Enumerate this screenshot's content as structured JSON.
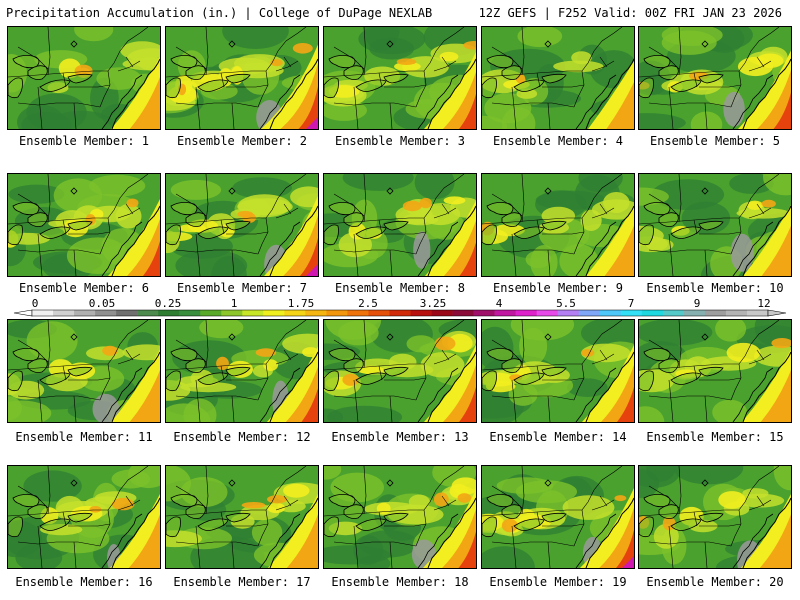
{
  "header": {
    "left": "Precipitation Accumulation (in.) | College of DuPage NEXLAB",
    "right": "12Z GEFS | F252 Valid: 00Z FRI JAN 23 2026"
  },
  "members": [
    {
      "label": "Ensemble Member: 1",
      "intensity": 0.35
    },
    {
      "label": "Ensemble Member: 2",
      "intensity": 0.75
    },
    {
      "label": "Ensemble Member: 3",
      "intensity": 0.5
    },
    {
      "label": "Ensemble Member: 4",
      "intensity": 0.2
    },
    {
      "label": "Ensemble Member: 5",
      "intensity": 0.55
    },
    {
      "label": "Ensemble Member: 6",
      "intensity": 0.5
    },
    {
      "label": "Ensemble Member: 7",
      "intensity": 0.6
    },
    {
      "label": "Ensemble Member: 8",
      "intensity": 0.45
    },
    {
      "label": "Ensemble Member: 9",
      "intensity": 0.3
    },
    {
      "label": "Ensemble Member: 10",
      "intensity": 0.3
    },
    {
      "label": "Ensemble Member: 11",
      "intensity": 0.35
    },
    {
      "label": "Ensemble Member: 12",
      "intensity": 0.45
    },
    {
      "label": "Ensemble Member: 13",
      "intensity": 0.5
    },
    {
      "label": "Ensemble Member: 14",
      "intensity": 0.5
    },
    {
      "label": "Ensemble Member: 15",
      "intensity": 0.35
    },
    {
      "label": "Ensemble Member: 16",
      "intensity": 0.4
    },
    {
      "label": "Ensemble Member: 17",
      "intensity": 0.4
    },
    {
      "label": "Ensemble Member: 18",
      "intensity": 0.55
    },
    {
      "label": "Ensemble Member: 19",
      "intensity": 0.6
    },
    {
      "label": "Ensemble Member: 20",
      "intensity": 0.4
    }
  ],
  "colorbar": {
    "labels": [
      "0",
      "0.05",
      "0.25",
      "1",
      "1.75",
      "2.5",
      "3.25",
      "4",
      "5.5",
      "7",
      "9",
      "12"
    ],
    "colors": [
      "#f0f0f0",
      "#d0d0d0",
      "#b0b0b0",
      "#909090",
      "#707070",
      "#4d8a4d",
      "#2e7d32",
      "#388e3c",
      "#5aaa2a",
      "#8cc62a",
      "#c8e628",
      "#f0f020",
      "#f5d418",
      "#f5b512",
      "#f2960e",
      "#ee730c",
      "#e44f0a",
      "#d12a0a",
      "#b81010",
      "#9a0818",
      "#8a0a38",
      "#a0106a",
      "#c018a0",
      "#dd22cc",
      "#e64ae8",
      "#b37ff2",
      "#7fa6f7",
      "#4fc7f9",
      "#33e0f5",
      "#1fd8e0",
      "#55c8c8",
      "#86b0b0",
      "#9e9e9e",
      "#b4b4b4",
      "#c8c8c8"
    ],
    "palette": {
      "green_dark": "#2f7f33",
      "green_mid": "#4aa12e",
      "green_light": "#7cc22a",
      "yellow_green": "#c4e12b",
      "yellow": "#f2ee1f",
      "orange": "#f3a614",
      "red": "#e6420e",
      "crimson": "#c4122a",
      "magenta": "#cf18b0",
      "gray": "#9a9a9a"
    }
  }
}
